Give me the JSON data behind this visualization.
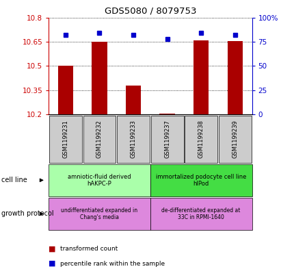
{
  "title": "GDS5080 / 8079753",
  "samples": [
    "GSM1199231",
    "GSM1199232",
    "GSM1199233",
    "GSM1199237",
    "GSM1199238",
    "GSM1199239"
  ],
  "transformed_count": [
    10.5,
    10.648,
    10.38,
    10.205,
    10.66,
    10.652
  ],
  "percentile_rank": [
    82,
    84,
    82,
    78,
    84,
    82
  ],
  "ylim_left": [
    10.2,
    10.8
  ],
  "ylim_right": [
    0,
    100
  ],
  "yticks_left": [
    10.2,
    10.35,
    10.5,
    10.65,
    10.8
  ],
  "yticks_right": [
    0,
    25,
    50,
    75,
    100
  ],
  "ytick_labels_right": [
    "0",
    "25",
    "50",
    "75",
    "100%"
  ],
  "bar_color": "#aa0000",
  "dot_color": "#0000cc",
  "cell_line_groups": [
    {
      "label": "amniotic-fluid derived\nhAKPC-P",
      "samples_idx": [
        0,
        1,
        2
      ],
      "color": "#aaffaa"
    },
    {
      "label": "immortalized podocyte cell line\nhIPod",
      "samples_idx": [
        3,
        4,
        5
      ],
      "color": "#44dd44"
    }
  ],
  "growth_protocol_groups": [
    {
      "label": "undifferentiated expanded in\nChang's media",
      "samples_idx": [
        0,
        1,
        2
      ],
      "color": "#dd88dd"
    },
    {
      "label": "de-differentiated expanded at\n33C in RPMI-1640",
      "samples_idx": [
        3,
        4,
        5
      ],
      "color": "#dd88dd"
    }
  ],
  "tick_label_color_left": "#cc0000",
  "tick_label_color_right": "#0000cc",
  "sample_box_color": "#cccccc",
  "left_label_color": "#888888"
}
